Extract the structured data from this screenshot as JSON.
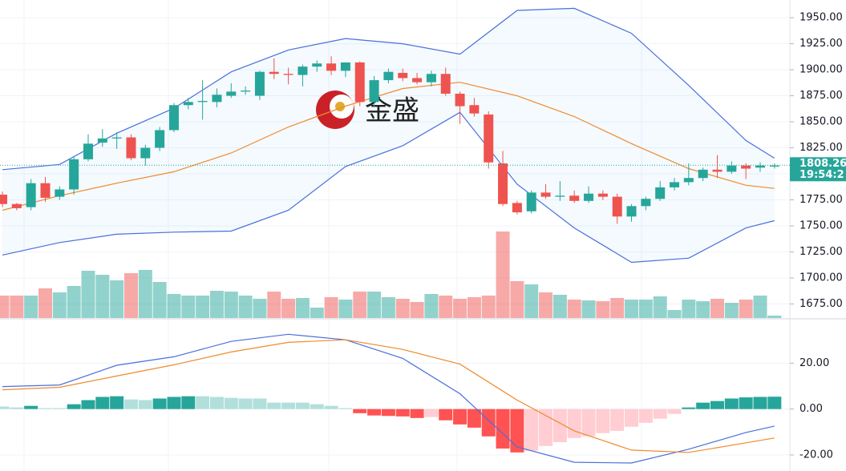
{
  "chart_data": [
    {
      "type": "candlestick",
      "watermark": "金盛",
      "up_color": "#26a69a",
      "down_color": "#ef5350",
      "open": [
        1780,
        1771,
        1768,
        1791,
        1778,
        1785,
        1814,
        1830,
        1834,
        1835,
        1815,
        1825,
        1842,
        1866,
        1869,
        1869,
        1875,
        1879,
        1875,
        1898,
        1896,
        1895,
        1903,
        1906,
        1899,
        1907,
        1869,
        1890,
        1897,
        1892,
        1888,
        1896,
        1877,
        1866,
        1857,
        1810,
        1772,
        1764,
        1782,
        1778,
        1779,
        1774,
        1781,
        1778,
        1759,
        1769,
        1776,
        1787,
        1792,
        1796,
        1804,
        1802,
        1808,
        1806,
        1807
      ],
      "high": [
        1783,
        1772,
        1795,
        1797,
        1788,
        1816,
        1838,
        1843,
        1840,
        1838,
        1828,
        1845,
        1868,
        1873,
        1890,
        1882,
        1887,
        1884,
        1899,
        1911,
        1902,
        1905,
        1909,
        1913,
        1907,
        1908,
        1894,
        1901,
        1901,
        1897,
        1899,
        1902,
        1879,
        1873,
        1860,
        1822,
        1774,
        1784,
        1790,
        1793,
        1784,
        1788,
        1784,
        1781,
        1771,
        1778,
        1793,
        1796,
        1810,
        1806,
        1818,
        1812,
        1810,
        1811,
        1810
      ],
      "low": [
        1768,
        1765,
        1765,
        1773,
        1775,
        1780,
        1812,
        1826,
        1824,
        1813,
        1808,
        1822,
        1840,
        1862,
        1852,
        1864,
        1873,
        1876,
        1871,
        1891,
        1886,
        1884,
        1898,
        1895,
        1893,
        1865,
        1864,
        1887,
        1889,
        1886,
        1884,
        1875,
        1848,
        1855,
        1805,
        1769,
        1761,
        1762,
        1776,
        1774,
        1772,
        1772,
        1775,
        1752,
        1754,
        1765,
        1774,
        1784,
        1789,
        1793,
        1796,
        1800,
        1795,
        1802,
        1805
      ],
      "close": [
        1771,
        1767,
        1791,
        1777,
        1785,
        1814,
        1829,
        1834,
        1835,
        1815,
        1825,
        1842,
        1866,
        1869,
        1870,
        1876,
        1879,
        1880,
        1898,
        1896,
        1895,
        1903,
        1906,
        1899,
        1907,
        1869,
        1890,
        1898,
        1892,
        1888,
        1896,
        1877,
        1865,
        1858,
        1811,
        1771,
        1763,
        1782,
        1778,
        1779,
        1774,
        1781,
        1778,
        1759,
        1769,
        1776,
        1787,
        1792,
        1796,
        1804,
        1802,
        1808,
        1805,
        1808,
        1808
      ],
      "volume": [
        28,
        28,
        28,
        37,
        32,
        40,
        59,
        54,
        47,
        56,
        60,
        45,
        30,
        28,
        28,
        34,
        33,
        28,
        24,
        33,
        24,
        25,
        13,
        26,
        23,
        33,
        33,
        26,
        24,
        20,
        30,
        28,
        24,
        26,
        28,
        108,
        46,
        42,
        32,
        29,
        23,
        22,
        21,
        25,
        23,
        23,
        27,
        10,
        23,
        21,
        24,
        19,
        23,
        28,
        3
      ],
      "series": [
        {
          "color": "#4a6fdc",
          "x": [
            0,
            4,
            8,
            12,
            16,
            20,
            24,
            28,
            32,
            36,
            40,
            44,
            48,
            52,
            54
          ],
          "values": [
            1804,
            1809,
            1839,
            1863,
            1898,
            1919,
            1930,
            1925,
            1915,
            1957,
            1959,
            1935,
            1885,
            1832,
            1815
          ]
        },
        {
          "color": "#f08a2c",
          "x": [
            0,
            4,
            8,
            12,
            16,
            20,
            24,
            28,
            32,
            36,
            40,
            44,
            48,
            52,
            54
          ],
          "values": [
            1765,
            1779,
            1791,
            1802,
            1820,
            1845,
            1865,
            1882,
            1888,
            1875,
            1855,
            1829,
            1805,
            1789,
            1786
          ]
        },
        {
          "color": "#4a6fdc",
          "x": [
            0,
            4,
            8,
            12,
            16,
            20,
            24,
            28,
            32,
            36,
            40,
            44,
            48,
            52,
            54
          ],
          "values": [
            1722,
            1734,
            1742,
            1744,
            1745,
            1765,
            1807,
            1827,
            1859,
            1790,
            1748,
            1715,
            1719,
            1748,
            1755
          ]
        }
      ],
      "last_price": 1808.26,
      "last_time": "19:54:2",
      "ylim": [
        1661.5,
        1967
      ],
      "yticks": [
        {
          "value": 1675,
          "label": "1675.00"
        },
        {
          "value": 1700,
          "label": "1700.00"
        },
        {
          "value": 1725,
          "label": "1725.00"
        },
        {
          "value": 1750,
          "label": "1750.00"
        },
        {
          "value": 1775,
          "label": "1775.00"
        },
        {
          "value": 1800,
          "label": "1800.00"
        },
        {
          "value": 1825,
          "label": "1825.00"
        },
        {
          "value": 1850,
          "label": "1850.00"
        },
        {
          "value": 1875,
          "label": "1875.00"
        },
        {
          "value": 1900,
          "label": "1900.00"
        },
        {
          "value": 1925,
          "label": "1925.00"
        },
        {
          "value": 1950,
          "label": "1950.00"
        }
      ],
      "grid": true
    },
    {
      "type": "macd",
      "histogram": [
        1.1,
        0.7,
        1.4,
        0.4,
        0.4,
        2.1,
        3.9,
        5.3,
        5.6,
        4.2,
        3.9,
        4.6,
        5.3,
        5.6,
        5.6,
        5.3,
        4.9,
        4.6,
        4.6,
        2.8,
        2.8,
        2.8,
        2.1,
        1.4,
        0.4,
        -1.8,
        -2.8,
        -3.0,
        -3.2,
        -3.9,
        -3.5,
        -4.9,
        -6.7,
        -8.1,
        -11.9,
        -17.2,
        -18.9,
        -18.2,
        -16.1,
        -14.4,
        -12.6,
        -11.9,
        -10.5,
        -9.5,
        -7.7,
        -6,
        -4.2,
        -2.1,
        0.7,
        2.8,
        3.5,
        4.6,
        5.1,
        5.3,
        5.4
      ],
      "histogram_colors": [
        "#26a69a",
        "#b2dfdb",
        "#ff5252",
        "#ffcdd2"
      ],
      "series": [
        {
          "color": "#4a6fdc",
          "x": [
            0,
            4,
            8,
            12,
            16,
            20,
            24,
            28,
            32,
            36,
            40,
            44,
            48,
            52,
            54
          ],
          "values": [
            9.8,
            10.5,
            19.1,
            22.8,
            29.5,
            32.6,
            30.2,
            22.1,
            6.7,
            -16.5,
            -23.2,
            -23.5,
            -17.5,
            -10.2,
            -7.4
          ]
        },
        {
          "color": "#f08a2c",
          "x": [
            0,
            4,
            8,
            12,
            16,
            20,
            24,
            28,
            32,
            36,
            40,
            44,
            48,
            52,
            54
          ],
          "values": [
            8.4,
            9.5,
            14.4,
            19.3,
            24.9,
            29.1,
            30.2,
            26,
            19.6,
            3.9,
            -9.5,
            -17.9,
            -18.9,
            -14.7,
            -12.6
          ]
        }
      ],
      "ylim": [
        -27,
        39
      ],
      "yticks": [
        {
          "value": -20,
          "label": "-20.00"
        },
        {
          "value": 0,
          "label": "0.00"
        },
        {
          "value": 20,
          "label": "20.00"
        }
      ],
      "grid": true
    }
  ]
}
